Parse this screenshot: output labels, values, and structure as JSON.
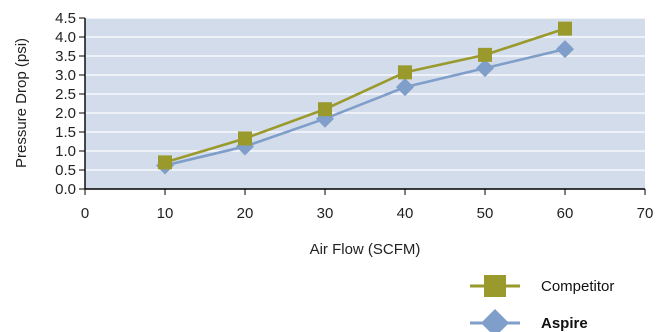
{
  "chart_data": {
    "type": "line",
    "title": "",
    "xlabel": "Air Flow (SCFM)",
    "ylabel": "Pressure Drop (psi)",
    "xlim": [
      0,
      70
    ],
    "ylim": [
      0,
      4.5
    ],
    "xticks": [
      "0",
      "10",
      "20",
      "30",
      "40",
      "50",
      "60",
      "70"
    ],
    "yticks": [
      "0.0",
      "0.5",
      "1.0",
      "1.5",
      "2.0",
      "2.5",
      "3.0",
      "3.5",
      "4.0",
      "4.5"
    ],
    "grid": true,
    "legend_position": "bottom-right",
    "series": [
      {
        "name": "Competitor",
        "marker": "square",
        "color": "#9a9a2c",
        "x": [
          10,
          20,
          30,
          40,
          50,
          60
        ],
        "y": [
          0.7,
          1.33,
          2.1,
          3.07,
          3.53,
          4.22
        ]
      },
      {
        "name": "Aspire",
        "marker": "diamond",
        "color": "#7f9ec9",
        "x": [
          10,
          20,
          30,
          40,
          50,
          60
        ],
        "y": [
          0.62,
          1.12,
          1.85,
          2.68,
          3.18,
          3.68
        ]
      }
    ],
    "plot_background": "#d3dceb",
    "gridline_color": "#ffffff"
  }
}
